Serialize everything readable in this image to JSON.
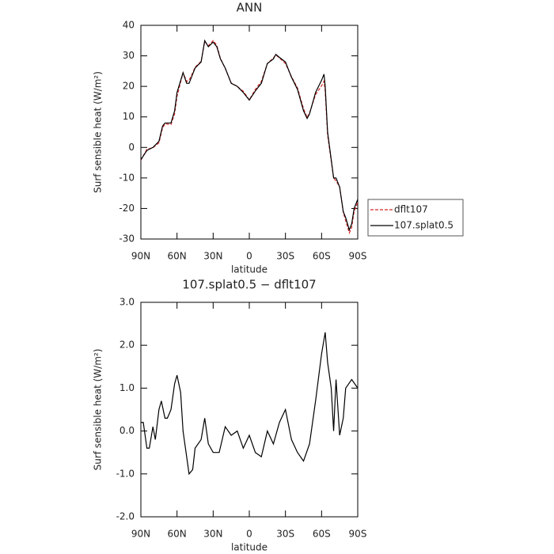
{
  "chart_data": [
    {
      "type": "line",
      "title": "ANN",
      "xlabel": "latitude",
      "ylabel": "Surf sensible heat (W/m²)",
      "x": [
        90,
        85,
        80,
        75,
        72,
        70,
        65,
        62,
        60,
        55,
        52,
        50,
        47,
        45,
        40,
        37,
        34,
        30,
        27,
        24,
        20,
        15,
        10,
        5,
        0,
        -5,
        -10,
        -15,
        -20,
        -22,
        -25,
        -30,
        -35,
        -40,
        -45,
        -48,
        -50,
        -55,
        -60,
        -62,
        -63,
        -65,
        -70,
        -72,
        -75,
        -78,
        -80,
        -83,
        -85,
        -87,
        -90
      ],
      "series": [
        {
          "name": "dflt107",
          "color": "#d62728",
          "dashed": true,
          "values": [
            -4.2,
            -0.6,
            -0.1,
            1.5,
            6.4,
            7.7,
            7.5,
            11,
            16.7,
            24.5,
            21.6,
            22,
            24.4,
            26.3,
            28.2,
            34.7,
            33.3,
            35,
            33.5,
            29.2,
            25.9,
            21.1,
            20,
            18.4,
            15.6,
            19,
            21.6,
            27.5,
            29.3,
            30.3,
            29.3,
            27.5,
            23.2,
            19.5,
            12.7,
            9.8,
            11.3,
            17.3,
            20.2,
            21.7,
            18.4,
            4,
            -10,
            -11,
            -12.9,
            -21.3,
            -24,
            -28,
            -26.2,
            -21,
            -18
          ]
        },
        {
          "name": "107.splat0.5",
          "color": "#000000",
          "dashed": false,
          "values": [
            -4,
            -1,
            0,
            2,
            7,
            8,
            8,
            12,
            18,
            24.5,
            21,
            21,
            24,
            26,
            28,
            35,
            33,
            34.5,
            33,
            29,
            26,
            21,
            20,
            18,
            15.5,
            18.5,
            21,
            27.5,
            29,
            30.5,
            29.5,
            28,
            23,
            19,
            12,
            9.5,
            11,
            18,
            22,
            24,
            20,
            5,
            -10,
            -10,
            -13,
            -21,
            -23,
            -27,
            -25,
            -20,
            -17
          ]
        }
      ],
      "xlim": [
        90,
        -90
      ],
      "xticks": [
        {
          "value": 90,
          "label": "90N"
        },
        {
          "value": 60,
          "label": "60N"
        },
        {
          "value": 30,
          "label": "30N"
        },
        0,
        {
          "value": -30,
          "label": "30S"
        },
        {
          "value": -60,
          "label": "60S"
        },
        {
          "value": -90,
          "label": "90S"
        }
      ],
      "ylim": [
        -30,
        40
      ],
      "yticks": [
        -30,
        -20,
        -10,
        0,
        10,
        20,
        30,
        40
      ],
      "legend": "right"
    },
    {
      "type": "line",
      "title": "107.splat0.5 − dflt107",
      "xlabel": "latitude",
      "ylabel": "Surf sensible heat (W/m²)",
      "x": [
        90,
        88,
        85,
        83,
        80,
        78,
        75,
        73,
        70,
        68,
        65,
        62,
        60,
        57,
        55,
        52,
        50,
        47,
        45,
        40,
        37,
        34,
        30,
        25,
        20,
        15,
        10,
        5,
        0,
        -5,
        -10,
        -15,
        -20,
        -25,
        -30,
        -35,
        -40,
        -45,
        -50,
        -55,
        -60,
        -63,
        -65,
        -68,
        -70,
        -72,
        -75,
        -78,
        -80,
        -85,
        -90
      ],
      "series": [
        {
          "color": "#000000",
          "dashed": false,
          "values": [
            0.2,
            0.2,
            -0.4,
            -0.4,
            0.1,
            -0.2,
            0.5,
            0.7,
            0.3,
            0.3,
            0.5,
            1.1,
            1.3,
            0.9,
            0.0,
            -0.6,
            -1.0,
            -0.9,
            -0.4,
            -0.2,
            0.3,
            -0.3,
            -0.5,
            -0.5,
            0.1,
            -0.1,
            0.0,
            -0.4,
            -0.1,
            -0.5,
            -0.6,
            0.0,
            -0.3,
            0.2,
            0.5,
            -0.2,
            -0.5,
            -0.7,
            -0.3,
            0.7,
            1.8,
            2.3,
            1.6,
            1.0,
            0.0,
            1.2,
            -0.1,
            0.3,
            1.0,
            1.2,
            1.0
          ]
        }
      ],
      "xlim": [
        90,
        -90
      ],
      "xticks": [
        {
          "value": 90,
          "label": "90N"
        },
        {
          "value": 60,
          "label": "60N"
        },
        {
          "value": 30,
          "label": "30N"
        },
        0,
        {
          "value": -30,
          "label": "30S"
        },
        {
          "value": -60,
          "label": "60S"
        },
        {
          "value": -90,
          "label": "90S"
        }
      ],
      "ylim": [
        -2,
        3
      ],
      "yticks": [
        {
          "value": -2,
          "label": "-2.0"
        },
        {
          "value": -1,
          "label": "-1.0"
        },
        {
          "value": 0,
          "label": "0.0"
        },
        {
          "value": 1,
          "label": "1.0"
        },
        {
          "value": 2,
          "label": "2.0"
        },
        {
          "value": 3,
          "label": "3.0"
        }
      ]
    }
  ]
}
